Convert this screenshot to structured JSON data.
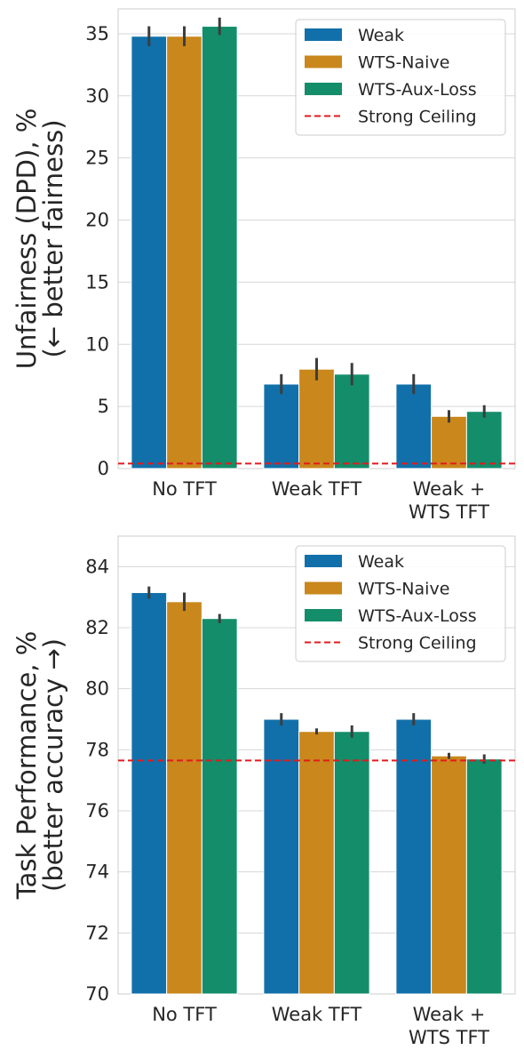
{
  "chart_data": [
    {
      "type": "bar",
      "categories": [
        [
          "No TFT"
        ],
        [
          "Weak TFT"
        ],
        [
          "Weak +",
          "WTS TFT"
        ]
      ],
      "ylabel": [
        "Unfairness (DPD), %",
        "(← better fairness)"
      ],
      "ylim": [
        0,
        37
      ],
      "yticks": [
        0,
        5,
        10,
        15,
        20,
        25,
        30,
        35
      ],
      "ceiling": 0.4,
      "grid": true,
      "legend_position": "top-right",
      "series": [
        {
          "name": "Weak",
          "color": "#1170aa",
          "values": [
            34.8,
            6.8,
            6.8
          ],
          "errors": [
            0.8,
            0.8,
            0.8
          ]
        },
        {
          "name": "WTS-Naive",
          "color": "#c9871c",
          "values": [
            34.8,
            8.0,
            4.2
          ],
          "errors": [
            0.8,
            0.9,
            0.5
          ]
        },
        {
          "name": "WTS-Aux-Loss",
          "color": "#138d6a",
          "values": [
            35.6,
            7.6,
            4.6
          ],
          "errors": [
            0.7,
            0.9,
            0.5
          ]
        }
      ],
      "ceiling_label": "Strong Ceiling",
      "ceiling_color": "#e31a1c"
    },
    {
      "type": "bar",
      "categories": [
        [
          "No TFT"
        ],
        [
          "Weak TFT"
        ],
        [
          "Weak +",
          "WTS TFT"
        ]
      ],
      "ylabel": [
        "Task Performance, %",
        "(better accuracy →)"
      ],
      "ylim": [
        70,
        85
      ],
      "yticks": [
        70,
        72,
        74,
        76,
        78,
        80,
        82,
        84
      ],
      "ceiling": 77.65,
      "grid": true,
      "legend_position": "top-right",
      "series": [
        {
          "name": "Weak",
          "color": "#1170aa",
          "values": [
            83.15,
            79.0,
            79.0
          ],
          "errors": [
            0.2,
            0.2,
            0.2
          ]
        },
        {
          "name": "WTS-Naive",
          "color": "#c9871c",
          "values": [
            82.85,
            78.6,
            77.8
          ],
          "errors": [
            0.3,
            0.1,
            0.1
          ]
        },
        {
          "name": "WTS-Aux-Loss",
          "color": "#138d6a",
          "values": [
            82.3,
            78.6,
            77.7
          ],
          "errors": [
            0.15,
            0.2,
            0.15
          ]
        }
      ],
      "ceiling_label": "Strong Ceiling",
      "ceiling_color": "#e31a1c"
    }
  ]
}
